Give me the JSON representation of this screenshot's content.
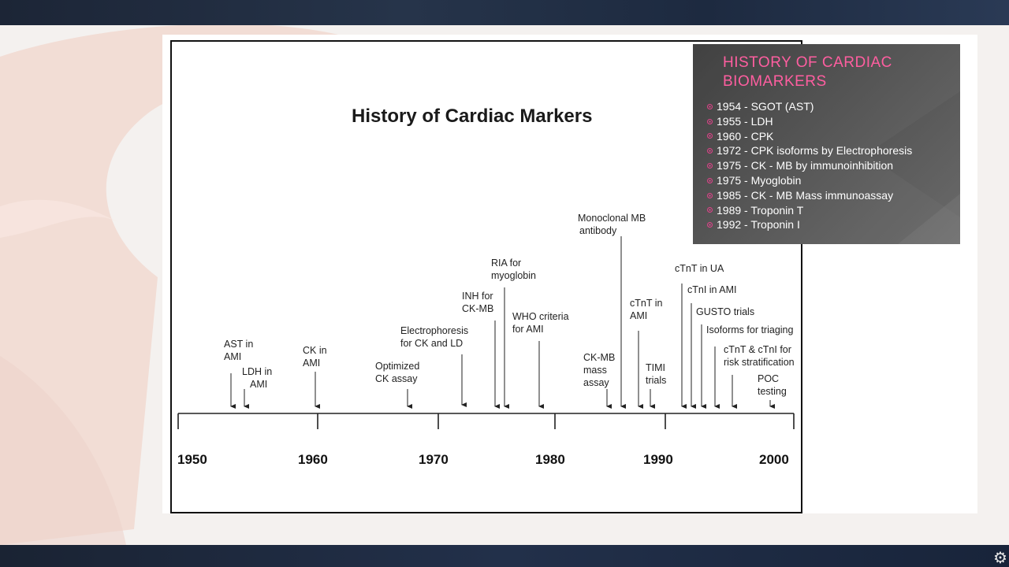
{
  "figure": {
    "title": "History of Cardiac Markers",
    "years": [
      "1950",
      "1960",
      "1970",
      "1980",
      "1990",
      "2000"
    ],
    "events": [
      {
        "id": "ast",
        "label": [
          "AST in",
          "AMI"
        ]
      },
      {
        "id": "ldh",
        "label": [
          "LDH in",
          "AMI"
        ]
      },
      {
        "id": "ck",
        "label": [
          "CK in",
          "AMI"
        ]
      },
      {
        "id": "optimized",
        "label": [
          "Optimized",
          "CK assay"
        ]
      },
      {
        "id": "electro",
        "label": [
          "Electrophoresis",
          "for CK and LD"
        ]
      },
      {
        "id": "inh",
        "label": [
          "INH for",
          "CK-MB"
        ]
      },
      {
        "id": "ria",
        "label": [
          "RIA for",
          "myoglobin"
        ]
      },
      {
        "id": "who",
        "label": [
          "WHO criteria",
          "for AMI"
        ]
      },
      {
        "id": "monoclonal",
        "label": [
          "Monoclonal MB",
          "antibody"
        ]
      },
      {
        "id": "ckmb-mass",
        "label": [
          "CK-MB",
          "mass",
          "assay"
        ]
      },
      {
        "id": "ctnt-ami",
        "label": [
          "cTnT in",
          "AMI"
        ]
      },
      {
        "id": "timi",
        "label": [
          "TIMI",
          "trials"
        ]
      },
      {
        "id": "ctnt-ua",
        "label": [
          "cTnT in UA"
        ]
      },
      {
        "id": "ctni-ami",
        "label": [
          "cTnI in AMI"
        ]
      },
      {
        "id": "gusto",
        "label": [
          "GUSTO trials"
        ]
      },
      {
        "id": "isoforms",
        "label": [
          "Isoforms for triaging"
        ]
      },
      {
        "id": "risk",
        "label": [
          "cTnT & cTnI for",
          "risk stratification"
        ]
      },
      {
        "id": "poc",
        "label": [
          "POC",
          "testing"
        ]
      }
    ]
  },
  "overlay": {
    "title": "HISTORY OF CARDIAC BIOMARKERS",
    "title_color": "#ff5ea0",
    "bullet_color": "#e0438a",
    "items": [
      "1954 - SGOT (AST)",
      "1955 - LDH",
      "1960 - CPK",
      "1972 - CPK isoforms by Electrophoresis",
      "1975 - CK - MB by immunoinhibition",
      "1975 - Myoglobin",
      "1985 - CK - MB Mass immunoassay",
      "1989 - Troponin T",
      "1992 - Troponin I"
    ]
  }
}
